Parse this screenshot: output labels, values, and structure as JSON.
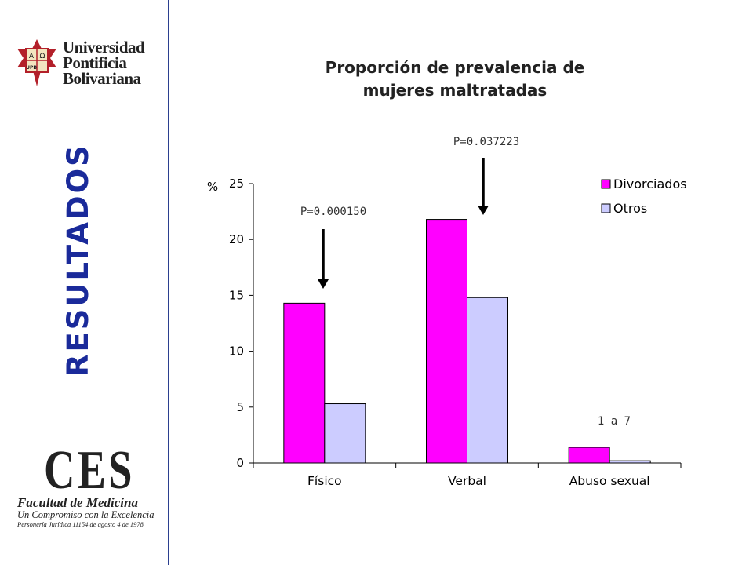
{
  "sidebar": {
    "logo_top": [
      "Universidad",
      "Pontificia",
      "Bolivariana"
    ],
    "seal_letters": [
      "A",
      "Ω",
      "UPB"
    ],
    "section_label": "RESULTADOS",
    "logo_bottom": {
      "title": "CES",
      "line1": "Facultad de Medicina",
      "line2": "Un Compromiso con la Excelencia",
      "line3": "Personería Jurídica 11154 de agosto 4 de 1978"
    }
  },
  "chart_data": {
    "type": "bar",
    "title": "Proporción de  prevalencia de\nmujeres maltratadas",
    "ylabel": "%",
    "ylim": [
      0,
      25
    ],
    "yticks": [
      0,
      5,
      10,
      15,
      20,
      25
    ],
    "categories": [
      "Físico",
      "Verbal",
      "Abuso sexual"
    ],
    "series": [
      {
        "name": "Divorciados",
        "color": "#ff00ff",
        "values": [
          14.3,
          21.8,
          1.4
        ]
      },
      {
        "name": "Otros",
        "color": "#ccccff",
        "values": [
          5.3,
          14.8,
          0.2
        ]
      }
    ],
    "annotations": [
      "P=0.000150",
      "P=0.037223",
      "1 a 7"
    ],
    "legend_position": "top-right",
    "grid": false
  }
}
